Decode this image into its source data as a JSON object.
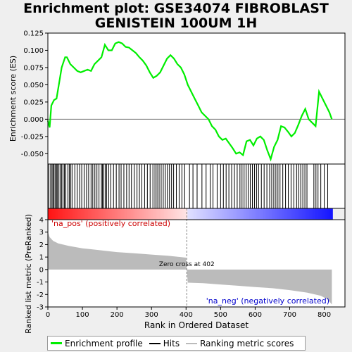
{
  "title_line1": "Enrichment plot: GSE34074 FIBROBLAST",
  "title_line2": "GENISTEIN 100UM 1H",
  "chart_data": {
    "type": "line",
    "es_panel": {
      "ylabel": "Enrichment score (ES)",
      "ylim": [
        -0.065,
        0.125
      ],
      "yticks": [
        -0.05,
        -0.025,
        0.0,
        0.025,
        0.05,
        0.075,
        0.1,
        0.125
      ],
      "ytick_labels": [
        "-0.050",
        "-0.025",
        "0.000",
        "0.025",
        "0.050",
        "0.075",
        "0.100",
        "0.125"
      ],
      "series_color": "#00ee00",
      "points": [
        [
          0,
          -0.002
        ],
        [
          5,
          -0.012
        ],
        [
          10,
          0.02
        ],
        [
          18,
          0.028
        ],
        [
          25,
          0.03
        ],
        [
          35,
          0.06
        ],
        [
          40,
          0.075
        ],
        [
          50,
          0.09
        ],
        [
          55,
          0.09
        ],
        [
          65,
          0.08
        ],
        [
          75,
          0.075
        ],
        [
          85,
          0.07
        ],
        [
          95,
          0.068
        ],
        [
          105,
          0.07
        ],
        [
          115,
          0.072
        ],
        [
          125,
          0.07
        ],
        [
          135,
          0.08
        ],
        [
          145,
          0.085
        ],
        [
          155,
          0.09
        ],
        [
          165,
          0.108
        ],
        [
          175,
          0.1
        ],
        [
          185,
          0.1
        ],
        [
          195,
          0.11
        ],
        [
          205,
          0.112
        ],
        [
          215,
          0.11
        ],
        [
          225,
          0.105
        ],
        [
          235,
          0.104
        ],
        [
          245,
          0.1
        ],
        [
          255,
          0.096
        ],
        [
          265,
          0.09
        ],
        [
          275,
          0.085
        ],
        [
          285,
          0.078
        ],
        [
          295,
          0.068
        ],
        [
          305,
          0.06
        ],
        [
          315,
          0.063
        ],
        [
          325,
          0.068
        ],
        [
          335,
          0.078
        ],
        [
          345,
          0.088
        ],
        [
          355,
          0.093
        ],
        [
          365,
          0.088
        ],
        [
          375,
          0.08
        ],
        [
          385,
          0.075
        ],
        [
          395,
          0.065
        ],
        [
          405,
          0.05
        ],
        [
          415,
          0.04
        ],
        [
          425,
          0.03
        ],
        [
          435,
          0.02
        ],
        [
          445,
          0.01
        ],
        [
          455,
          0.005
        ],
        [
          465,
          0.0
        ],
        [
          475,
          -0.01
        ],
        [
          485,
          -0.015
        ],
        [
          495,
          -0.025
        ],
        [
          505,
          -0.03
        ],
        [
          515,
          -0.028
        ],
        [
          525,
          -0.035
        ],
        [
          535,
          -0.042
        ],
        [
          545,
          -0.05
        ],
        [
          555,
          -0.048
        ],
        [
          565,
          -0.052
        ],
        [
          575,
          -0.032
        ],
        [
          585,
          -0.03
        ],
        [
          595,
          -0.038
        ],
        [
          605,
          -0.028
        ],
        [
          615,
          -0.025
        ],
        [
          625,
          -0.03
        ],
        [
          635,
          -0.045
        ],
        [
          645,
          -0.058
        ],
        [
          655,
          -0.04
        ],
        [
          665,
          -0.03
        ],
        [
          675,
          -0.01
        ],
        [
          685,
          -0.012
        ],
        [
          695,
          -0.018
        ],
        [
          705,
          -0.025
        ],
        [
          715,
          -0.02
        ],
        [
          725,
          -0.008
        ],
        [
          735,
          0.005
        ],
        [
          745,
          0.015
        ],
        [
          755,
          0.0
        ],
        [
          765,
          -0.005
        ],
        [
          775,
          -0.01
        ],
        [
          785,
          0.04
        ],
        [
          795,
          0.03
        ],
        [
          805,
          0.02
        ],
        [
          815,
          0.01
        ],
        [
          822,
          0.0
        ]
      ]
    },
    "hits": [
      3,
      8,
      12,
      15,
      18,
      22,
      25,
      28,
      32,
      36,
      40,
      44,
      48,
      52,
      58,
      62,
      66,
      70,
      78,
      85,
      92,
      98,
      105,
      112,
      118,
      125,
      130,
      136,
      142,
      148,
      155,
      158,
      162,
      166,
      170,
      176,
      182,
      190,
      198,
      206,
      212,
      220,
      228,
      235,
      242,
      250,
      258,
      265,
      272,
      280,
      288,
      296,
      304,
      310,
      316,
      322,
      328,
      334,
      340,
      346,
      352,
      358,
      364,
      372,
      380,
      388,
      396,
      410,
      420,
      432,
      446,
      458,
      470,
      478,
      490,
      500,
      508,
      516,
      524,
      532,
      540,
      548,
      556,
      562,
      568,
      574,
      580,
      586,
      592,
      598,
      604,
      610,
      618,
      626,
      634,
      642,
      648,
      654,
      660,
      666,
      672,
      680,
      688,
      696,
      704,
      712,
      720,
      726,
      732,
      738,
      744,
      750,
      770,
      776,
      782,
      790,
      800,
      810
    ],
    "ranked_metric": {
      "ylabel": "Ranked list metric (PreRanked)",
      "xlabel": "Rank in Ordered Dataset",
      "ylim": [
        -3,
        4
      ],
      "yticks": [
        -3,
        -2,
        -1,
        0,
        1,
        2,
        3,
        4
      ],
      "xlim": [
        0,
        860
      ],
      "xticks": [
        0,
        100,
        200,
        300,
        400,
        500,
        600,
        700,
        800
      ],
      "n_genes": 822,
      "zero_cross": 402,
      "zero_cross_label": "Zero cross at 402",
      "pos_label": "'na_pos' (positively correlated)",
      "neg_label": "'na_neg' (negatively correlated)",
      "profile": [
        [
          0,
          3.0
        ],
        [
          5,
          2.6
        ],
        [
          15,
          2.3
        ],
        [
          30,
          2.1
        ],
        [
          60,
          1.9
        ],
        [
          100,
          1.7
        ],
        [
          150,
          1.55
        ],
        [
          200,
          1.4
        ],
        [
          250,
          1.3
        ],
        [
          300,
          1.2
        ],
        [
          350,
          1.1
        ],
        [
          400,
          0.95
        ],
        [
          402,
          0.0
        ],
        [
          405,
          -1.05
        ],
        [
          450,
          -1.1
        ],
        [
          500,
          -1.2
        ],
        [
          550,
          -1.3
        ],
        [
          600,
          -1.4
        ],
        [
          650,
          -1.5
        ],
        [
          700,
          -1.65
        ],
        [
          750,
          -1.85
        ],
        [
          790,
          -2.1
        ],
        [
          810,
          -2.4
        ],
        [
          822,
          -2.8
        ]
      ]
    },
    "legend": [
      "Enrichment profile",
      "Hits",
      "Ranking metric scores"
    ],
    "colors": {
      "es": "#00ee00",
      "hits": "#000000",
      "metric": "#bbbbbb",
      "pos_text": "#cc0000",
      "neg_text": "#0000cc"
    }
  }
}
